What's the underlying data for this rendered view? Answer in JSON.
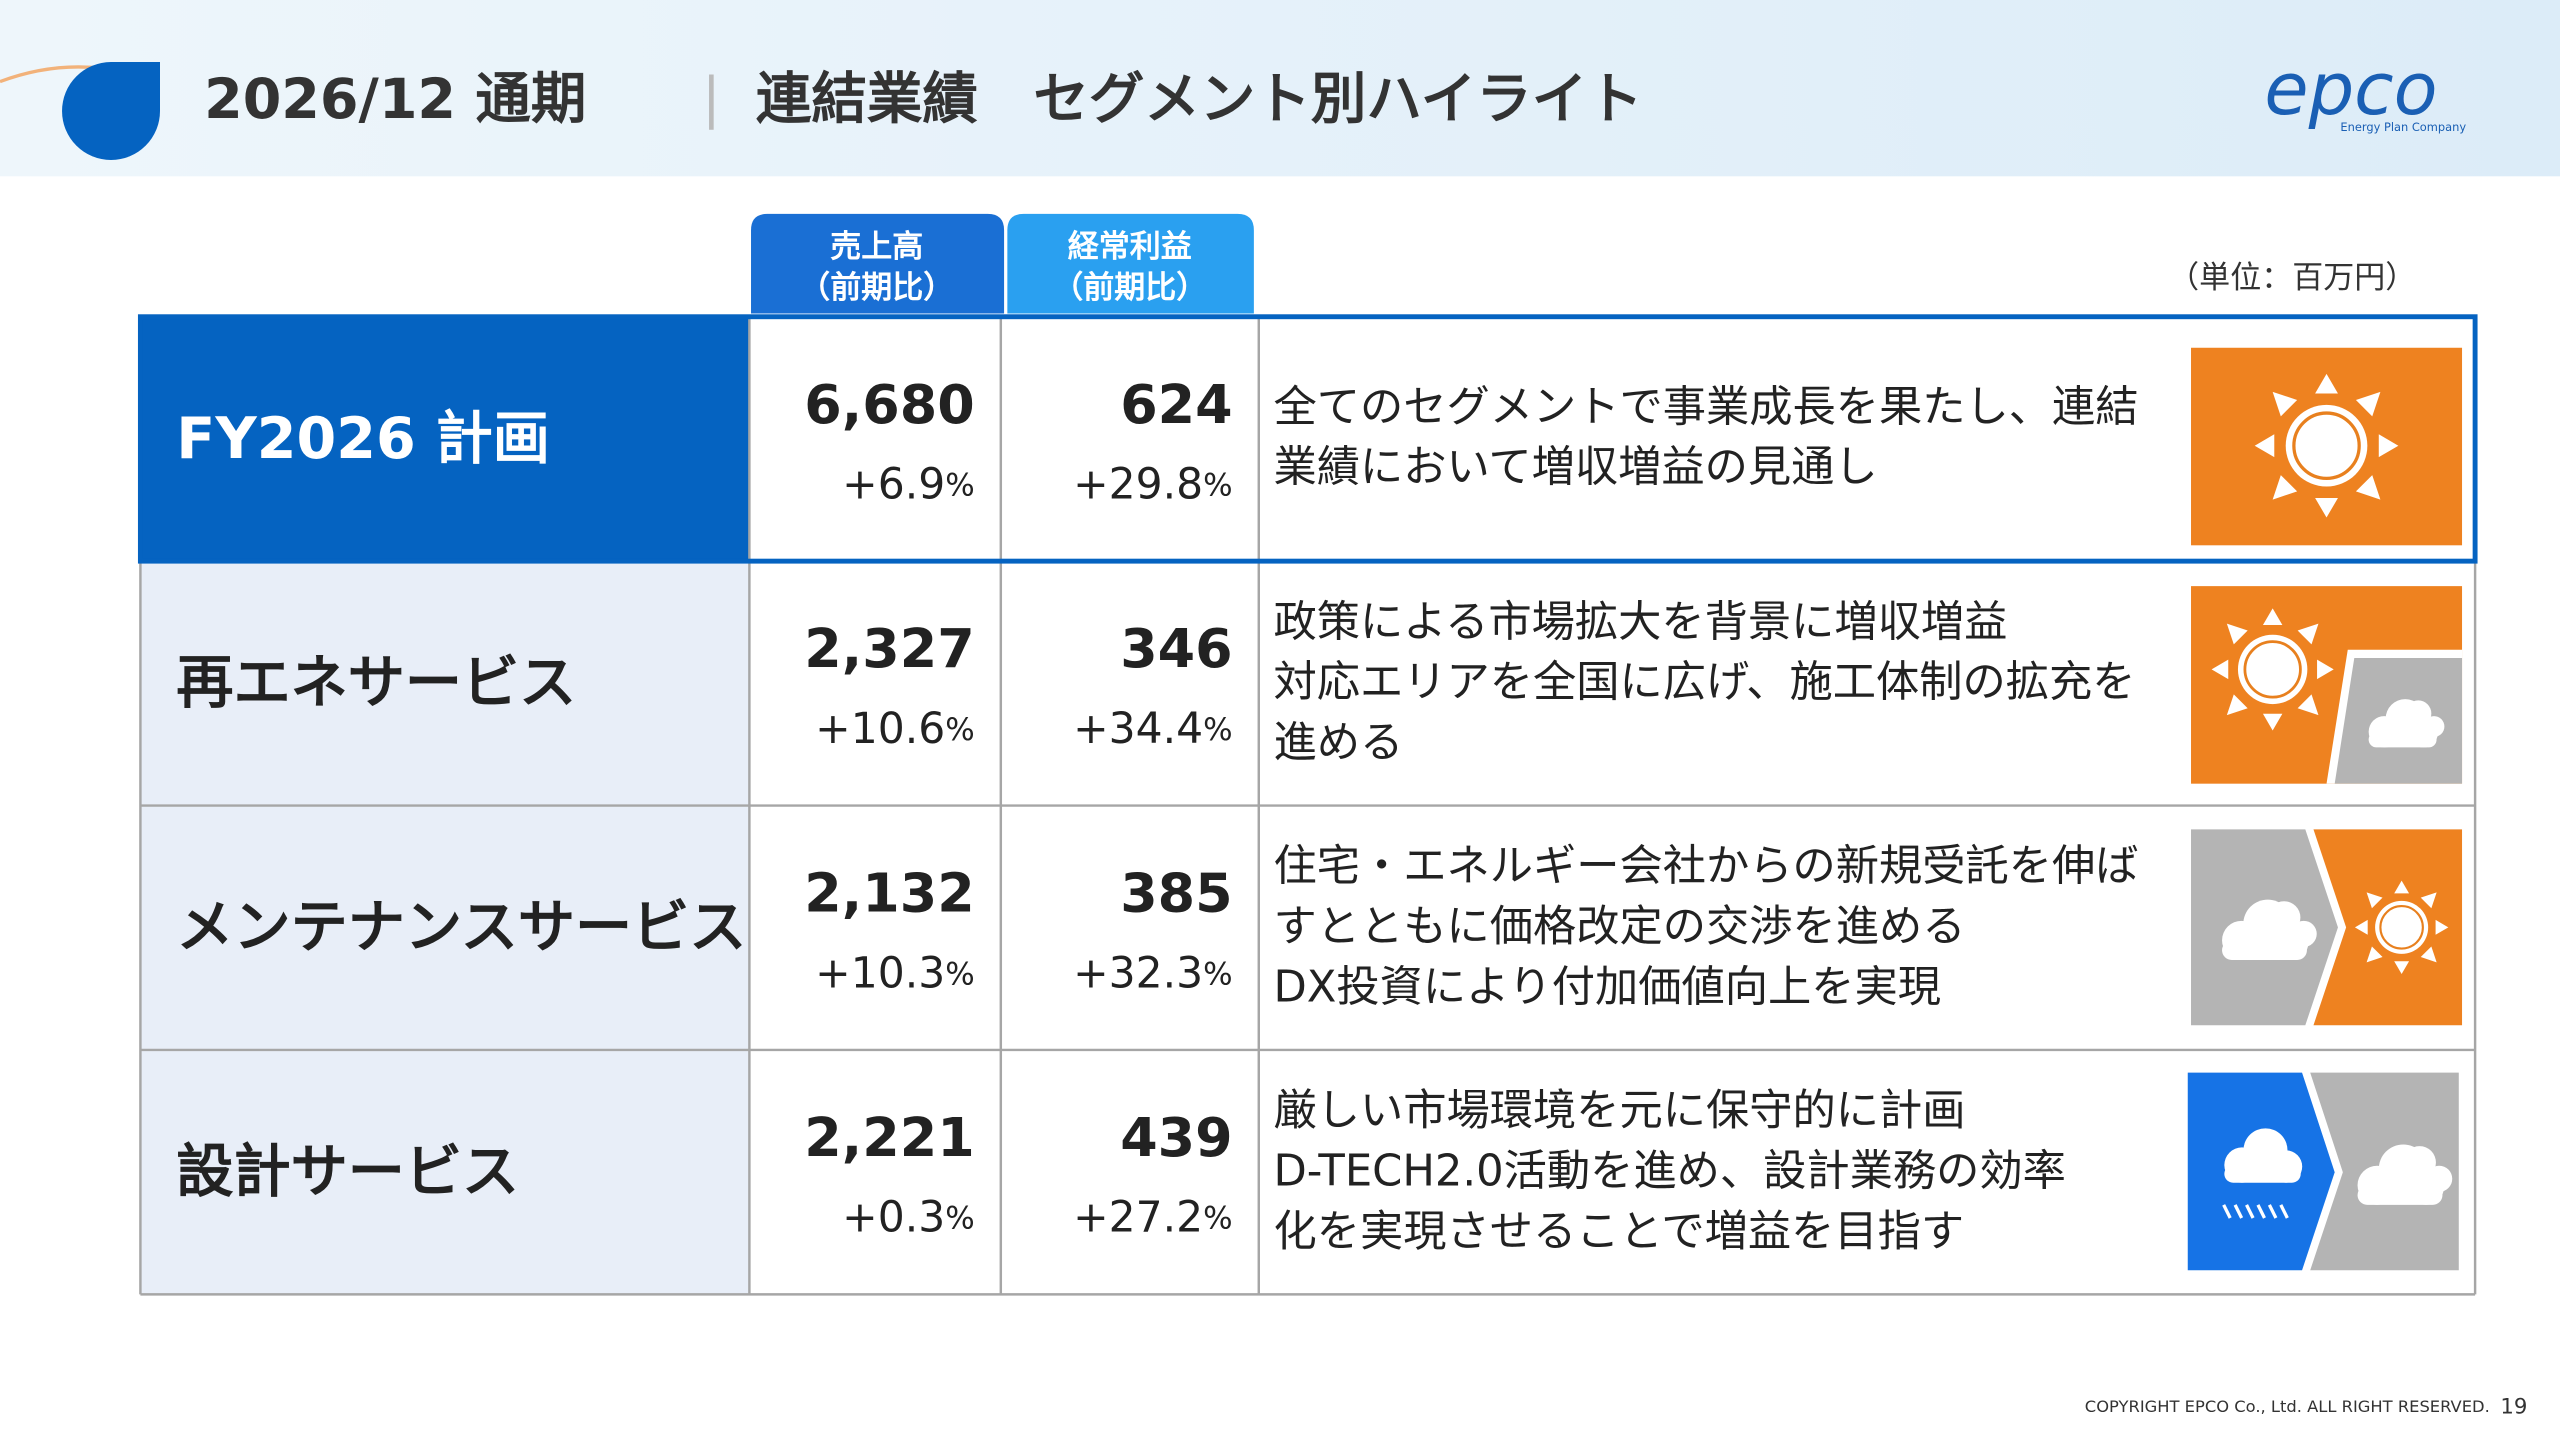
{
  "header": {
    "title": "2026/12 通期",
    "subtitle": "連結業績　セグメント別ハイライト",
    "logo": "epco",
    "logo_tagline": "Energy Plan Company"
  },
  "unit": "（単位：百万円）",
  "columns": [
    [
      "売上高",
      "（前期比）"
    ],
    [
      "経常利益",
      "（前期比）"
    ]
  ],
  "rows": [
    {
      "label": "FY2026 計画",
      "sales": "6,680",
      "sales_change": "+6.9%",
      "profit": "624",
      "profit_change": "+29.8%",
      "comment": [
        "全てのセグメントで事業成長を果たし、連結",
        "業績において増収増益の見通し"
      ]
    },
    {
      "label": "再エネサービス",
      "sales": "2,327",
      "sales_change": "+10.6%",
      "profit": "346",
      "profit_change": "+34.4%",
      "comment": [
        "政策による市場拡大を背景に増収増益",
        "対応エリアを全国に広げ、施工体制の拡充を",
        "進める"
      ]
    },
    {
      "label": "メンテナンスサービス",
      "sales": "2,132",
      "sales_change": "+10.3%",
      "profit": "385",
      "profit_change": "+32.3%",
      "comment": [
        "住宅・エネルギー会社からの新規受託を伸ば",
        "すとともに価格改定の交渉を進める",
        "DX投資により付加価値向上を実現"
      ]
    },
    {
      "label": "設計サービス",
      "sales": "2,221",
      "sales_change": "+0.3%",
      "profit": "439",
      "profit_change": "+27.2%",
      "comment": [
        "厳しい市場環境を元に保守的に計画",
        "D-TECH2.0活動を進め、設計業務の効率",
        "化を実現させることで増益を目指す"
      ]
    }
  ],
  "footer": {
    "copyright": "COPYRIGHT EPCO Co., Ltd. ALL RIGHT RESERVED.",
    "page": "19"
  }
}
